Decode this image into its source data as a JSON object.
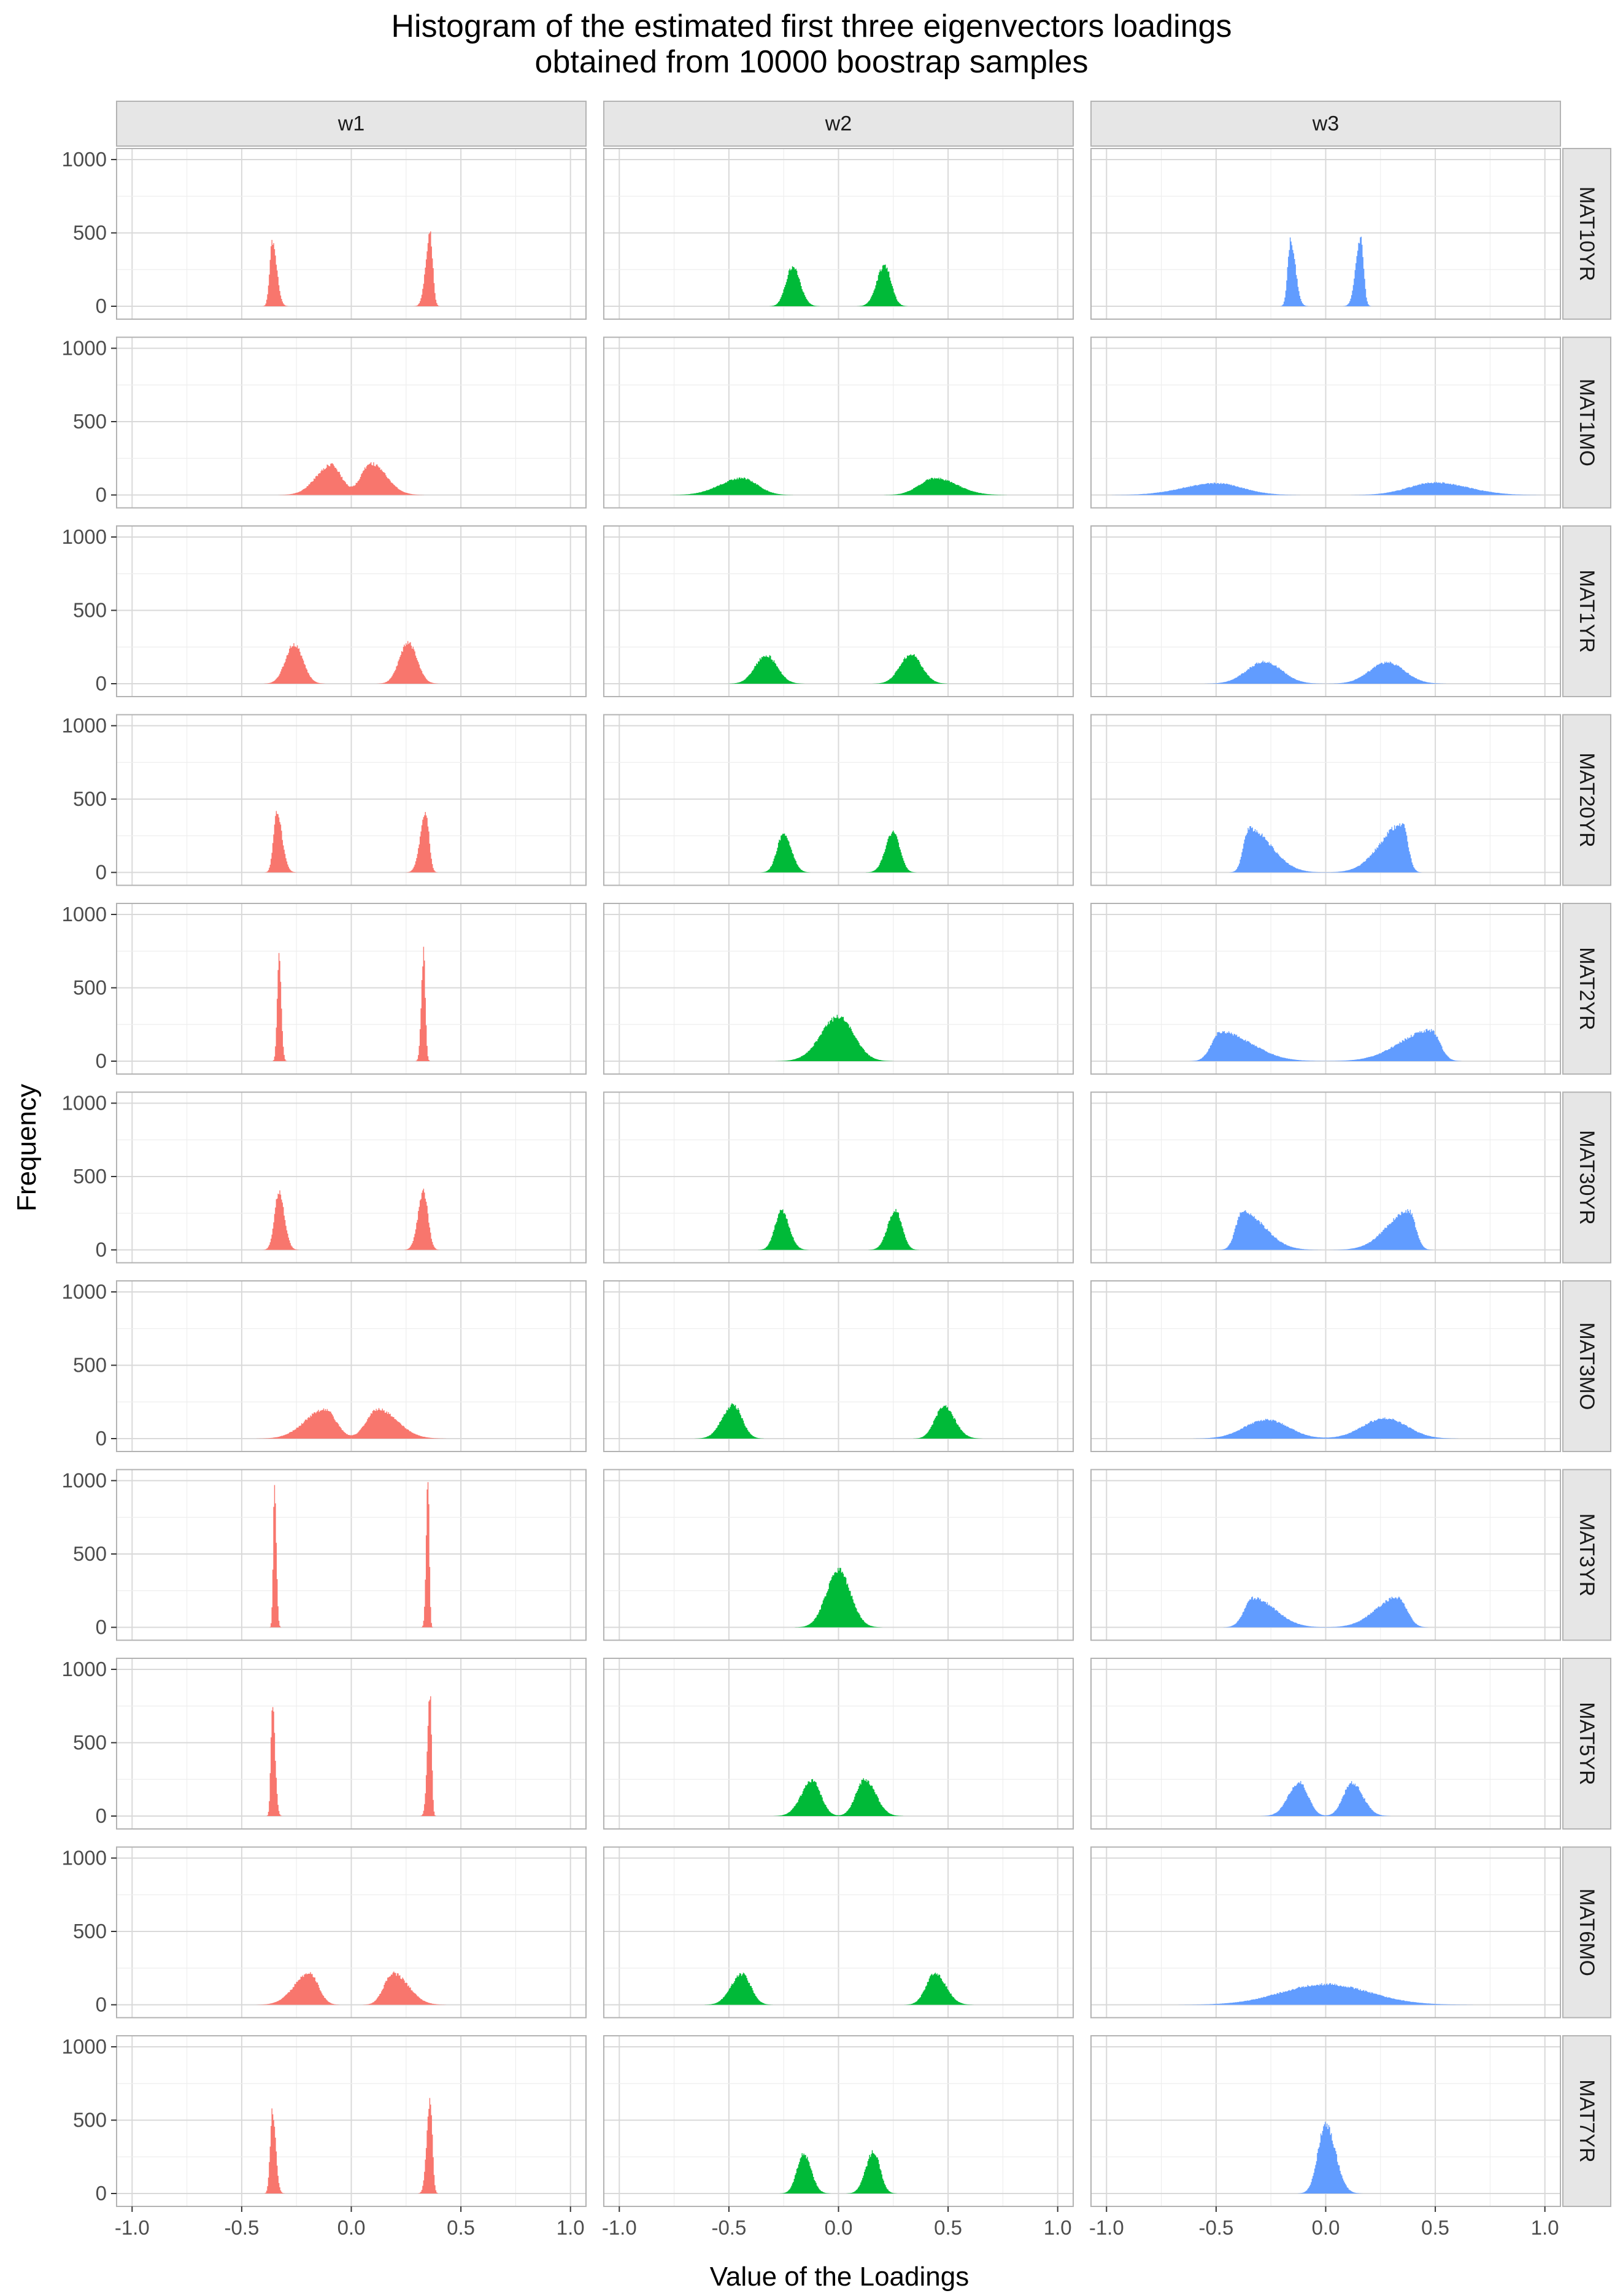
{
  "chart_data": {
    "type": "histogram",
    "title_lines": [
      "Histogram of the estimated first three eigenvectors loadings",
      "obtained from 10000 boostrap samples"
    ],
    "xlabel": "Value of the Loadings",
    "ylabel": "Frequency",
    "xlim": [
      -1.04,
      1.04
    ],
    "ylim": [
      0,
      1050
    ],
    "x_ticks": [
      "-1.0",
      "-0.5",
      "0.0",
      "0.5",
      "1.0"
    ],
    "y_ticks": [
      "0",
      "500",
      "1000"
    ],
    "grid": true,
    "column_facets": [
      "w1",
      "w2",
      "w3"
    ],
    "row_facets": [
      "MAT10YR",
      "MAT1MO",
      "MAT1YR",
      "MAT20YR",
      "MAT2YR",
      "MAT30YR",
      "MAT3MO",
      "MAT3YR",
      "MAT5YR",
      "MAT6MO",
      "MAT7YR"
    ],
    "colors": {
      "w1": "#F8766D",
      "w2": "#00BA38",
      "w3": "#619CFF"
    },
    "histograms": {
      "MAT10YR": {
        "w1": [
          {
            "center": -0.36,
            "peak": 440,
            "left_sd": 0.012,
            "right_sd": 0.02
          },
          {
            "center": 0.36,
            "peak": 490,
            "left_sd": 0.02,
            "right_sd": 0.012
          }
        ],
        "w2": [
          {
            "center": -0.21,
            "peak": 270,
            "left_sd": 0.03,
            "right_sd": 0.035
          },
          {
            "center": 0.21,
            "peak": 280,
            "left_sd": 0.035,
            "right_sd": 0.03
          }
        ],
        "w3": [
          {
            "center": -0.16,
            "peak": 450,
            "left_sd": 0.013,
            "right_sd": 0.022
          },
          {
            "center": 0.16,
            "peak": 470,
            "left_sd": 0.022,
            "right_sd": 0.013
          }
        ]
      },
      "MAT1MO": {
        "w1": [
          {
            "center": -0.09,
            "peak": 205,
            "left_sd": 0.07,
            "right_sd": 0.045
          },
          {
            "center": 0.09,
            "peak": 215,
            "left_sd": 0.045,
            "right_sd": 0.07
          }
        ],
        "w2": [
          {
            "center": -0.44,
            "peak": 115,
            "left_sd": 0.1,
            "right_sd": 0.07
          },
          {
            "center": 0.44,
            "peak": 115,
            "left_sd": 0.07,
            "right_sd": 0.1
          }
        ],
        "w3": [
          {
            "center": -0.5,
            "peak": 80,
            "left_sd": 0.15,
            "right_sd": 0.12
          },
          {
            "center": 0.5,
            "peak": 85,
            "left_sd": 0.12,
            "right_sd": 0.15
          }
        ]
      },
      "MAT1YR": {
        "w1": [
          {
            "center": -0.26,
            "peak": 270,
            "left_sd": 0.04,
            "right_sd": 0.04
          },
          {
            "center": 0.26,
            "peak": 280,
            "left_sd": 0.04,
            "right_sd": 0.04
          }
        ],
        "w2": [
          {
            "center": -0.33,
            "peak": 195,
            "left_sd": 0.05,
            "right_sd": 0.05
          },
          {
            "center": 0.33,
            "peak": 200,
            "left_sd": 0.05,
            "right_sd": 0.05
          }
        ],
        "w3": [
          {
            "center": -0.28,
            "peak": 150,
            "left_sd": 0.08,
            "right_sd": 0.08
          },
          {
            "center": 0.28,
            "peak": 145,
            "left_sd": 0.08,
            "right_sd": 0.08
          }
        ]
      },
      "MAT20YR": {
        "w1": [
          {
            "center": -0.34,
            "peak": 400,
            "left_sd": 0.015,
            "right_sd": 0.025
          },
          {
            "center": 0.34,
            "peak": 410,
            "left_sd": 0.025,
            "right_sd": 0.015
          }
        ],
        "w2": [
          {
            "center": -0.25,
            "peak": 265,
            "left_sd": 0.03,
            "right_sd": 0.035
          },
          {
            "center": 0.25,
            "peak": 275,
            "left_sd": 0.035,
            "right_sd": 0.03
          }
        ],
        "w3": [
          {
            "center": -0.35,
            "peak": 300,
            "left_sd": 0.025,
            "right_sd": 0.1
          },
          {
            "center": 0.35,
            "peak": 330,
            "left_sd": 0.1,
            "right_sd": 0.025
          }
        ]
      },
      "MAT2YR": {
        "w1": [
          {
            "center": -0.33,
            "peak": 720,
            "left_sd": 0.008,
            "right_sd": 0.01
          },
          {
            "center": 0.33,
            "peak": 740,
            "left_sd": 0.01,
            "right_sd": 0.008
          }
        ],
        "w2": [
          {
            "center": 0.0,
            "peak": 300,
            "left_sd": 0.08,
            "right_sd": 0.07
          }
        ],
        "w3": [
          {
            "center": -0.48,
            "peak": 200,
            "left_sd": 0.04,
            "right_sd": 0.14
          },
          {
            "center": 0.48,
            "peak": 210,
            "left_sd": 0.14,
            "right_sd": 0.04
          }
        ]
      },
      "MAT30YR": {
        "w1": [
          {
            "center": -0.33,
            "peak": 390,
            "left_sd": 0.02,
            "right_sd": 0.025
          },
          {
            "center": 0.33,
            "peak": 400,
            "left_sd": 0.025,
            "right_sd": 0.02
          }
        ],
        "w2": [
          {
            "center": -0.26,
            "peak": 265,
            "left_sd": 0.03,
            "right_sd": 0.035
          },
          {
            "center": 0.26,
            "peak": 270,
            "left_sd": 0.035,
            "right_sd": 0.03
          }
        ],
        "w3": [
          {
            "center": -0.38,
            "peak": 260,
            "left_sd": 0.03,
            "right_sd": 0.1
          },
          {
            "center": 0.38,
            "peak": 265,
            "left_sd": 0.1,
            "right_sd": 0.03
          }
        ]
      },
      "MAT3MO": {
        "w1": [
          {
            "center": -0.12,
            "peak": 200,
            "left_sd": 0.09,
            "right_sd": 0.05
          },
          {
            "center": 0.12,
            "peak": 200,
            "left_sd": 0.05,
            "right_sd": 0.09
          }
        ],
        "w2": [
          {
            "center": -0.48,
            "peak": 230,
            "left_sd": 0.05,
            "right_sd": 0.04
          },
          {
            "center": 0.48,
            "peak": 220,
            "left_sd": 0.04,
            "right_sd": 0.05
          }
        ],
        "w3": [
          {
            "center": -0.27,
            "peak": 130,
            "left_sd": 0.1,
            "right_sd": 0.1
          },
          {
            "center": 0.27,
            "peak": 140,
            "left_sd": 0.1,
            "right_sd": 0.1
          }
        ]
      },
      "MAT3YR": {
        "w1": [
          {
            "center": -0.35,
            "peak": 1000,
            "left_sd": 0.006,
            "right_sd": 0.008
          },
          {
            "center": 0.35,
            "peak": 1010,
            "left_sd": 0.008,
            "right_sd": 0.006
          }
        ],
        "w2": [
          {
            "center": 0.0,
            "peak": 390,
            "left_sd": 0.055,
            "right_sd": 0.055
          }
        ],
        "w3": [
          {
            "center": -0.33,
            "peak": 200,
            "left_sd": 0.04,
            "right_sd": 0.1
          },
          {
            "center": 0.33,
            "peak": 205,
            "left_sd": 0.1,
            "right_sd": 0.04
          }
        ]
      },
      "MAT5YR": {
        "w1": [
          {
            "center": -0.36,
            "peak": 770,
            "left_sd": 0.007,
            "right_sd": 0.012
          },
          {
            "center": 0.36,
            "peak": 840,
            "left_sd": 0.012,
            "right_sd": 0.007
          }
        ],
        "w2": [
          {
            "center": -0.12,
            "peak": 240,
            "left_sd": 0.05,
            "right_sd": 0.04
          },
          {
            "center": 0.12,
            "peak": 250,
            "left_sd": 0.04,
            "right_sd": 0.05
          }
        ],
        "w3": [
          {
            "center": -0.12,
            "peak": 230,
            "left_sd": 0.05,
            "right_sd": 0.04
          },
          {
            "center": 0.12,
            "peak": 225,
            "left_sd": 0.04,
            "right_sd": 0.05
          }
        ]
      },
      "MAT6MO": {
        "w1": [
          {
            "center": -0.19,
            "peak": 215,
            "left_sd": 0.07,
            "right_sd": 0.04
          },
          {
            "center": 0.19,
            "peak": 215,
            "left_sd": 0.04,
            "right_sd": 0.07
          }
        ],
        "w2": [
          {
            "center": -0.44,
            "peak": 210,
            "left_sd": 0.05,
            "right_sd": 0.04
          },
          {
            "center": 0.44,
            "peak": 215,
            "left_sd": 0.04,
            "right_sd": 0.05
          }
        ],
        "w3": [
          {
            "center": 0.0,
            "peak": 140,
            "left_sd": 0.2,
            "right_sd": 0.2
          }
        ]
      },
      "MAT7YR": {
        "w1": [
          {
            "center": -0.36,
            "peak": 560,
            "left_sd": 0.01,
            "right_sd": 0.015
          },
          {
            "center": 0.36,
            "peak": 650,
            "left_sd": 0.015,
            "right_sd": 0.01
          }
        ],
        "w2": [
          {
            "center": -0.16,
            "peak": 270,
            "left_sd": 0.03,
            "right_sd": 0.035
          },
          {
            "center": 0.16,
            "peak": 285,
            "left_sd": 0.035,
            "right_sd": 0.03
          }
        ],
        "w3": [
          {
            "center": 0.0,
            "peak": 470,
            "left_sd": 0.035,
            "right_sd": 0.045
          }
        ]
      }
    }
  }
}
